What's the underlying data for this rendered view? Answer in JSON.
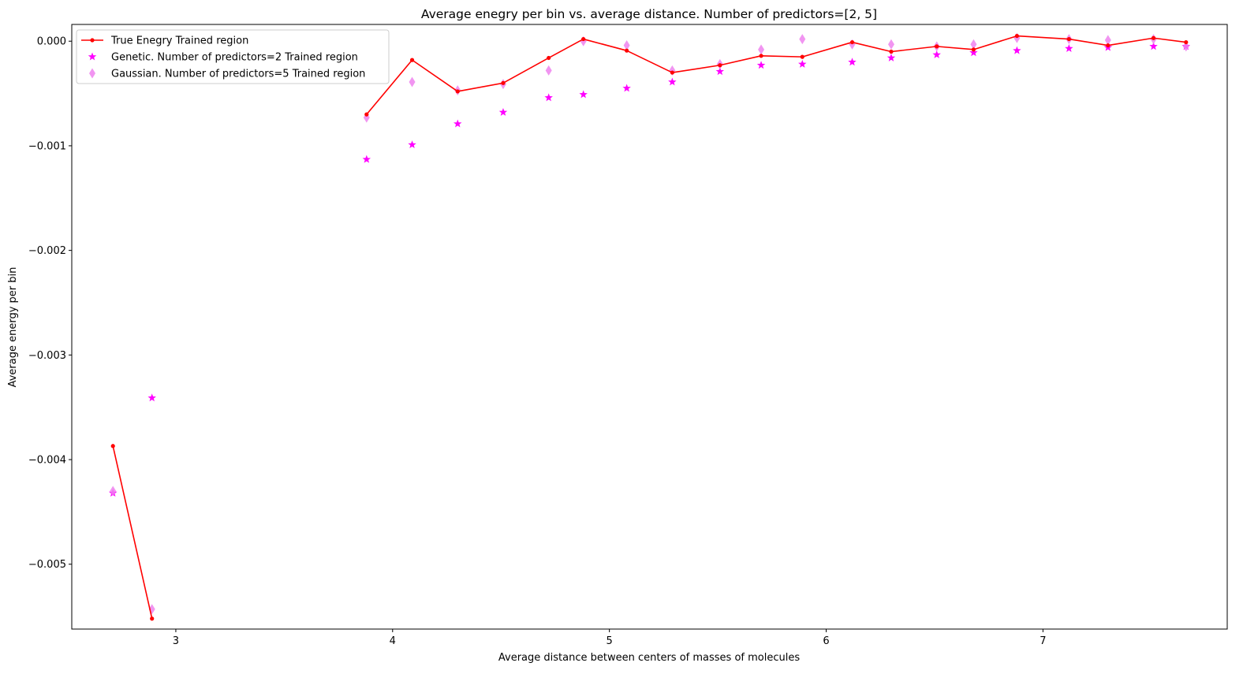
{
  "chart_data": {
    "type": "line",
    "title": "Average enegry per bin vs. average distance. Number of predictors=[2, 5]",
    "xlabel": "Average distance between centers of masses of molecules",
    "ylabel": "Average energy per bin",
    "xlim": [
      2.52,
      7.85
    ],
    "ylim": [
      -0.00562,
      0.00016
    ],
    "xticks": [
      3,
      4,
      5,
      6,
      7
    ],
    "xtick_labels": [
      "3",
      "4",
      "5",
      "6",
      "7"
    ],
    "yticks": [
      0.0,
      -0.001,
      -0.002,
      -0.003,
      -0.004,
      -0.005
    ],
    "ytick_labels": [
      "0.000",
      "−0.001",
      "−0.002",
      "−0.003",
      "−0.004",
      "−0.005"
    ],
    "grid": false,
    "legend_position": "top-left",
    "series": [
      {
        "name": "True Enegry Trained region",
        "kind": "line",
        "marker": "dot",
        "color": "#ff0000",
        "segments": [
          [
            [
              2.71,
              -0.00387
            ],
            [
              2.89,
              -0.00552
            ]
          ],
          [
            [
              3.88,
              -0.0007
            ],
            [
              4.09,
              -0.00018
            ],
            [
              4.3,
              -0.00048
            ],
            [
              4.51,
              -0.0004
            ],
            [
              4.72,
              -0.00016
            ],
            [
              4.88,
              2e-05
            ],
            [
              5.08,
              -9e-05
            ],
            [
              5.29,
              -0.0003
            ],
            [
              5.51,
              -0.00023
            ],
            [
              5.7,
              -0.00014
            ],
            [
              5.89,
              -0.00015
            ],
            [
              6.12,
              -1e-05
            ],
            [
              6.3,
              -0.0001
            ],
            [
              6.51,
              -5e-05
            ],
            [
              6.68,
              -8e-05
            ],
            [
              6.88,
              5e-05
            ],
            [
              7.12,
              2e-05
            ],
            [
              7.3,
              -4e-05
            ],
            [
              7.51,
              3e-05
            ],
            [
              7.66,
              -1e-05
            ]
          ]
        ]
      },
      {
        "name": "Genetic. Number of predictors=2 Trained region",
        "kind": "scatter",
        "marker": "star",
        "color": "#ff00ff",
        "x": [
          2.71,
          2.89,
          3.88,
          4.09,
          4.3,
          4.51,
          4.72,
          4.88,
          5.08,
          5.29,
          5.51,
          5.7,
          5.89,
          6.12,
          6.3,
          6.51,
          6.68,
          6.88,
          7.12,
          7.3,
          7.51,
          7.66
        ],
        "y": [
          -0.00432,
          -0.00341,
          -0.00113,
          -0.00099,
          -0.00079,
          -0.00068,
          -0.00054,
          -0.00051,
          -0.00045,
          -0.00039,
          -0.00029,
          -0.00023,
          -0.00022,
          -0.0002,
          -0.00016,
          -0.00013,
          -0.00011,
          -9e-05,
          -7e-05,
          -6e-05,
          -5e-05,
          -5e-05
        ]
      },
      {
        "name": "Gaussian. Number of predictors=5 Trained region",
        "kind": "scatter",
        "marker": "thin_diamond",
        "color": "#ee82ee",
        "x": [
          2.71,
          2.89,
          3.88,
          4.09,
          4.3,
          4.51,
          4.72,
          4.88,
          5.08,
          5.29,
          5.51,
          5.7,
          5.89,
          6.12,
          6.3,
          6.51,
          6.68,
          6.88,
          7.12,
          7.3,
          7.51,
          7.66
        ],
        "y": [
          -0.0043,
          -0.00543,
          -0.00073,
          -0.00039,
          -0.00047,
          -0.00041,
          -0.00028,
          0.0,
          -4e-05,
          -0.00028,
          -0.00022,
          -8e-05,
          2e-05,
          -3e-05,
          -3e-05,
          -5e-05,
          -3e-05,
          3e-05,
          2e-05,
          1e-05,
          2e-05,
          -5e-05
        ]
      }
    ]
  }
}
